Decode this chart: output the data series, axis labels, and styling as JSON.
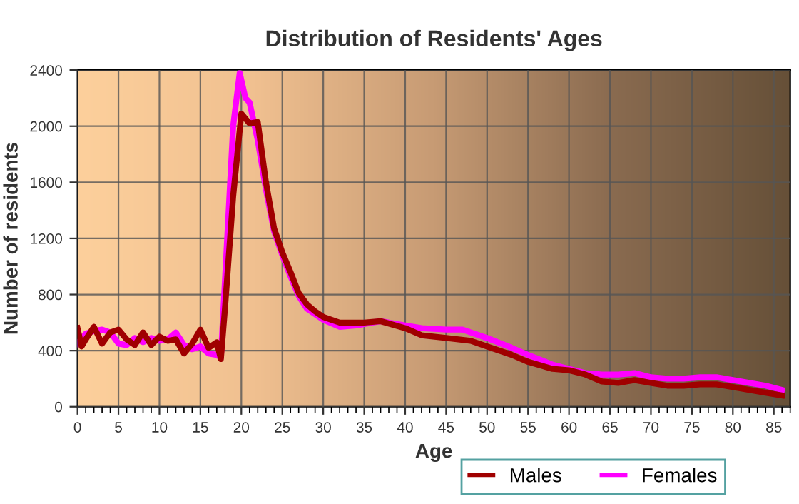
{
  "chart_data": {
    "type": "line",
    "title": "Distribution of Residents' Ages",
    "xlabel": "Age",
    "ylabel": "Number of residents",
    "xlim": [
      0,
      87
    ],
    "xticks": [
      0,
      5,
      10,
      15,
      20,
      25,
      30,
      35,
      40,
      45,
      50,
      55,
      60,
      65,
      70,
      75,
      80,
      85
    ],
    "ylim": [
      0,
      2400
    ],
    "yticks": [
      0,
      400,
      800,
      1200,
      1600,
      2000,
      2400
    ],
    "grid": true,
    "legend": "bottom right",
    "marker": "none",
    "line_style": "solid",
    "series": [
      {
        "name": "Males",
        "color": "#a00000",
        "x": [
          0,
          0.5,
          1,
          2,
          3,
          4,
          5,
          6,
          7,
          8,
          9,
          10,
          11,
          12,
          13,
          14,
          15,
          16,
          17,
          17.5,
          18,
          19,
          20,
          21,
          22,
          23,
          24,
          25,
          26,
          27,
          28,
          29,
          30,
          32,
          35,
          37,
          40,
          42,
          45,
          48,
          50,
          53,
          55,
          58,
          60,
          62,
          64,
          66,
          68,
          70,
          72,
          74,
          76,
          78,
          80,
          82,
          84,
          86
        ],
        "values": [
          560,
          430,
          480,
          570,
          450,
          530,
          550,
          480,
          440,
          530,
          440,
          500,
          470,
          480,
          380,
          450,
          550,
          420,
          460,
          340,
          700,
          1500,
          2090,
          2020,
          2030,
          1600,
          1270,
          1100,
          960,
          810,
          730,
          680,
          640,
          600,
          600,
          610,
          560,
          510,
          490,
          470,
          430,
          370,
          320,
          270,
          260,
          230,
          180,
          170,
          190,
          170,
          150,
          150,
          160,
          160,
          140,
          120,
          100,
          80
        ]
      },
      {
        "name": "Females",
        "color": "#ff00ff",
        "x": [
          0,
          1,
          2,
          3,
          4,
          5,
          6,
          7,
          8,
          9,
          10,
          11,
          12,
          13,
          14,
          15,
          16,
          17,
          17.5,
          18,
          19,
          19.8,
          20.5,
          21,
          22,
          23,
          24,
          25,
          26,
          27,
          28,
          30,
          32,
          34,
          37,
          40,
          42,
          45,
          47,
          50,
          53,
          55,
          58,
          60,
          62,
          64,
          66,
          68,
          70,
          72,
          74,
          76,
          78,
          80,
          82,
          84,
          86
        ],
        "values": [
          450,
          520,
          540,
          550,
          530,
          450,
          440,
          490,
          460,
          490,
          470,
          480,
          530,
          440,
          410,
          430,
          380,
          370,
          350,
          900,
          2000,
          2380,
          2200,
          2170,
          1900,
          1550,
          1250,
          1080,
          930,
          790,
          700,
          620,
          570,
          580,
          610,
          580,
          560,
          550,
          550,
          490,
          420,
          370,
          300,
          270,
          240,
          230,
          230,
          240,
          210,
          200,
          200,
          210,
          210,
          190,
          170,
          150,
          120
        ]
      }
    ]
  }
}
